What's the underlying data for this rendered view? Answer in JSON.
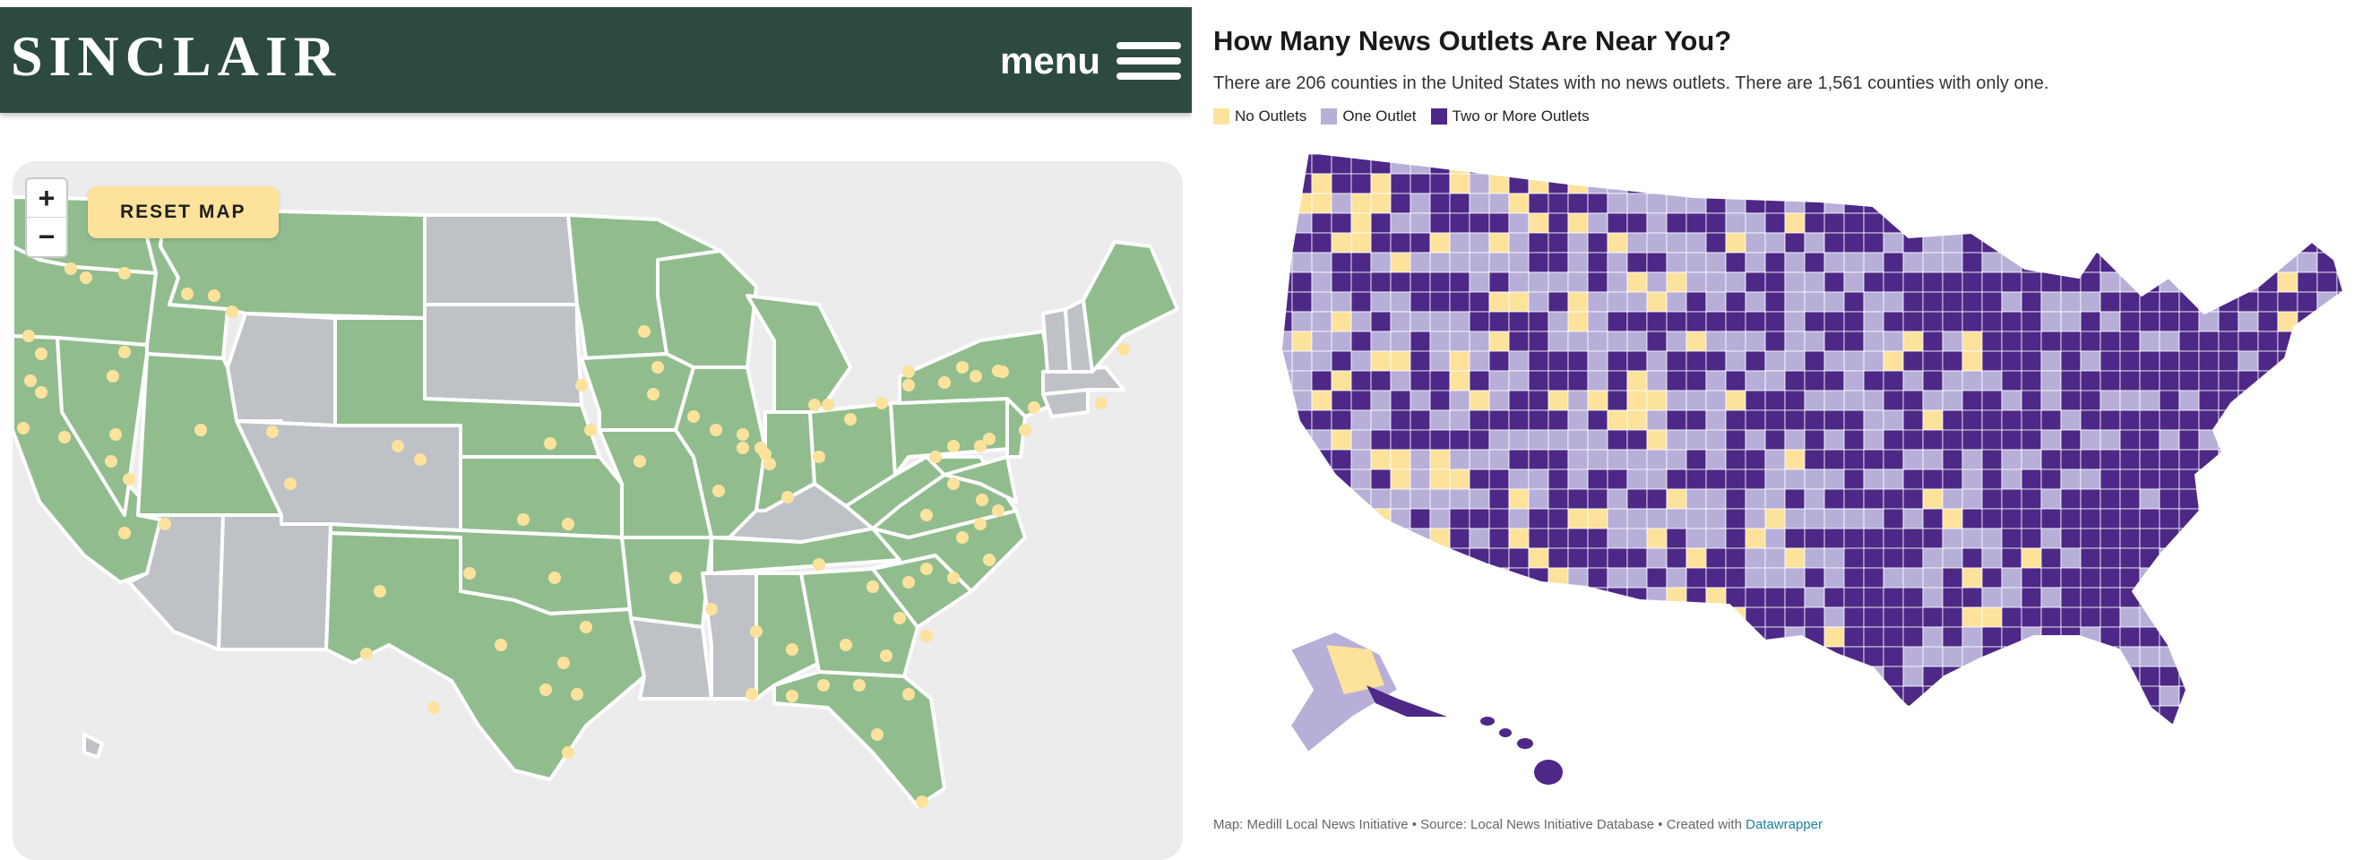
{
  "sinclair": {
    "brand": "SINCLAIR",
    "menu_label": "menu",
    "zoom_in": "+",
    "zoom_out": "−",
    "reset_label": "RESET MAP",
    "colors": {
      "header": "#2d4a3e",
      "state_with": "#91bd8e",
      "state_without": "#bec1c5",
      "dot": "#fde29c",
      "border": "#ffffff"
    }
  },
  "newsmap": {
    "title": "How Many News Outlets Are Near You?",
    "description": "There are 206 counties in the United States with no news outlets. There are 1,561 counties with only one.",
    "legend": [
      {
        "label": "No Outlets",
        "color": "#fde29c"
      },
      {
        "label": "One Outlet",
        "color": "#b7afd8"
      },
      {
        "label": "Two or More Outlets",
        "color": "#4d2887"
      }
    ],
    "footer_prefix": "Map: Medill Local News Initiative • Source: Local News Initiative Database • Created with ",
    "footer_link": "Datawrapper"
  }
}
